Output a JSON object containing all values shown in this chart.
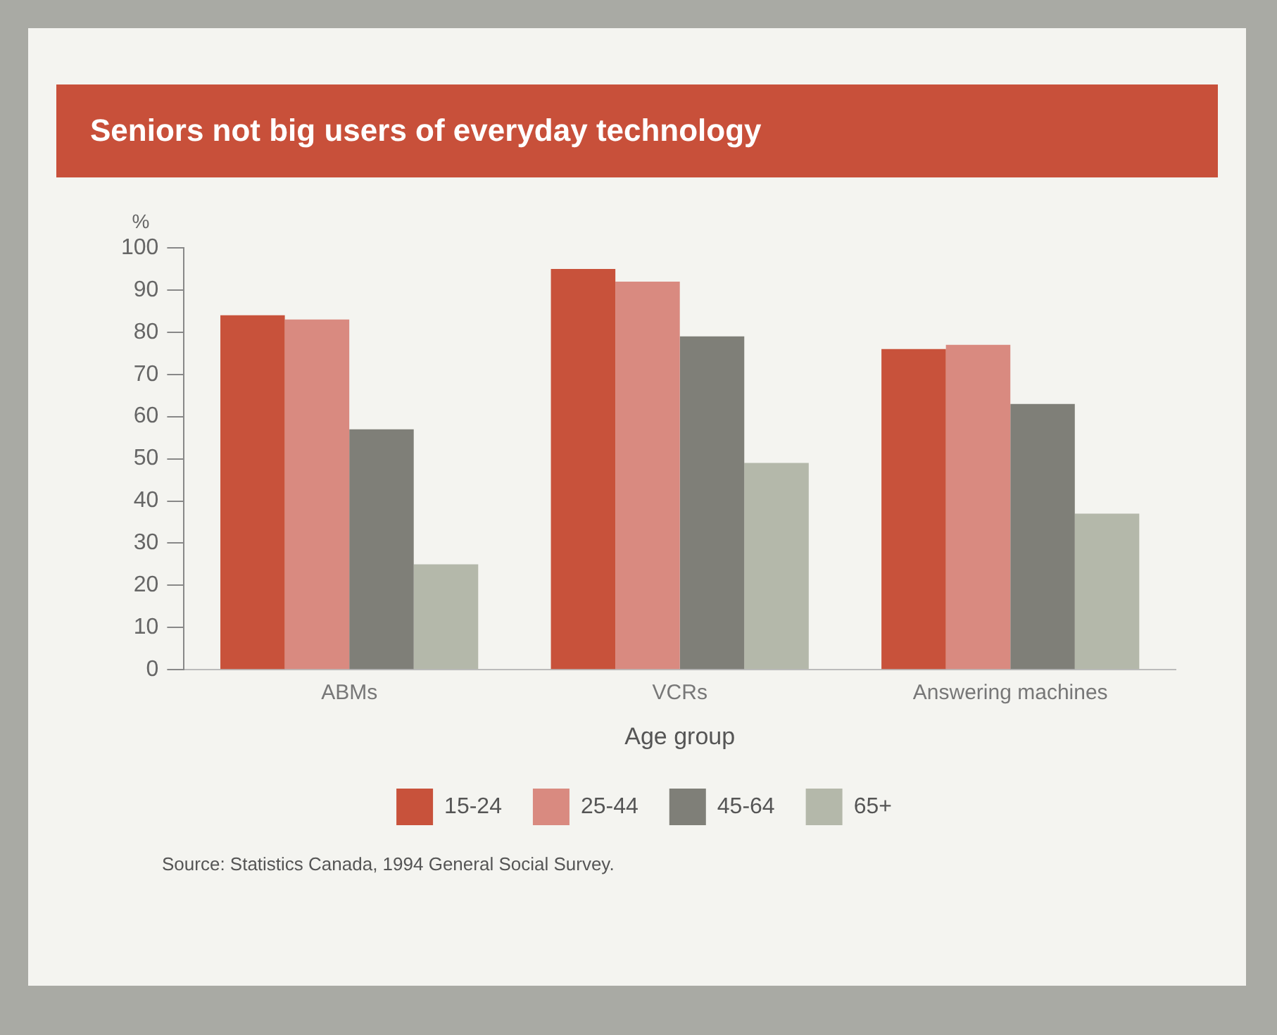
{
  "chart_data": {
    "type": "bar",
    "title": "Seniors not big users of everyday technology",
    "ylabel": "%",
    "xlabel": "Age group",
    "categories": [
      "ABMs",
      "VCRs",
      "Answering machines"
    ],
    "series": [
      {
        "name": "15-24",
        "color": "#c8523b",
        "values": [
          84,
          95,
          76
        ]
      },
      {
        "name": "25-44",
        "color": "#d98a80",
        "values": [
          83,
          92,
          77
        ]
      },
      {
        "name": "45-64",
        "color": "#7f7f78",
        "values": [
          57,
          79,
          63
        ]
      },
      {
        "name": "65+",
        "color": "#b4b8aa",
        "values": [
          25,
          49,
          37
        ]
      }
    ],
    "ylim": [
      0,
      100
    ],
    "yticks": [
      0,
      10,
      20,
      30,
      40,
      50,
      60,
      70,
      80,
      90,
      100
    ],
    "grid": false,
    "legend": "bottom",
    "annotations": [
      "Source: Statistics Canada, 1994 General Social Survey."
    ]
  }
}
